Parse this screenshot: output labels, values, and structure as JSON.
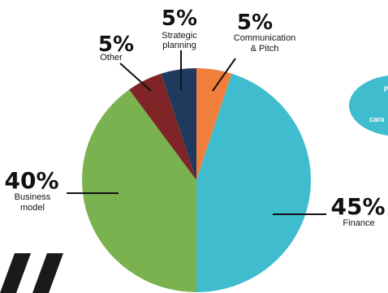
{
  "chart_data": {
    "type": "pie",
    "colors": {
      "communication": "#f07f3c",
      "finance": "#40bccf",
      "business": "#79b24e",
      "other": "#7f2527",
      "strategic": "#1f3a5d"
    },
    "slices": [
      {
        "key": "communication",
        "value": 5,
        "pct_label": "5%",
        "label_lines": [
          "Communication",
          "& Pitch"
        ]
      },
      {
        "key": "finance",
        "value": 45,
        "pct_label": "45%",
        "label_lines": [
          "Finance"
        ]
      },
      {
        "key": "business",
        "value": 40,
        "pct_label": "40%",
        "label_lines": [
          "Business",
          "model"
        ]
      },
      {
        "key": "other",
        "value": 5,
        "pct_label": "5%",
        "label_lines": [
          "Other"
        ]
      },
      {
        "key": "strategic",
        "value": 5,
        "pct_label": "5%",
        "label_lines": [
          "Strategic",
          "planning"
        ]
      }
    ]
  },
  "side_bubble": {
    "color": "#40bccf",
    "text_lines": [
      "P",
      "cara"
    ]
  },
  "quote_mark": {
    "color": "#1a1a1a"
  }
}
